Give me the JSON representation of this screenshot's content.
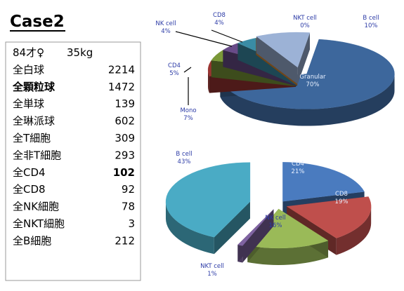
{
  "title": "Case2",
  "table": {
    "rows": [
      [
        "84才♀",
        "35kg"
      ],
      [
        "全白球",
        2214
      ],
      [
        "全顆粒球",
        1472
      ],
      [
        "全単球",
        139
      ],
      [
        "全琳派球",
        602
      ],
      [
        "全T細胞",
        309
      ],
      [
        "全非T細胞",
        293
      ],
      [
        "全CD4",
        102
      ],
      [
        "全CD8",
        92
      ],
      [
        "全NK細胞",
        78
      ],
      [
        "全NKT細胞",
        3
      ],
      [
        "全B細胞",
        212
      ]
    ]
  },
  "chart_data": [
    {
      "type": "pie",
      "categories": [
        "Granular",
        "Mono",
        "CD4",
        "NK cell",
        "CD8",
        "NKT cell",
        "B cell"
      ],
      "values": [
        70,
        7,
        5,
        4,
        4,
        0,
        10
      ],
      "value_labels": [
        "70%",
        "7%",
        "5%",
        "4%",
        "4%",
        "0%",
        "10%"
      ],
      "colors": [
        "#3d679c",
        "#9a3431",
        "#7a9838",
        "#684b88",
        "#3a8ca5",
        "#e08a2e",
        "#9cb2d6"
      ]
    },
    {
      "type": "pie",
      "categories": [
        "CD4",
        "CD8",
        "NK cell",
        "NKT cell",
        "B cell"
      ],
      "values": [
        21,
        19,
        16,
        1,
        43
      ],
      "value_labels": [
        "21%",
        "19%",
        "16%",
        "1%",
        "43%"
      ],
      "colors": [
        "#4a7bbf",
        "#bf4f4c",
        "#9aba58",
        "#7f63a1",
        "#4aabc5"
      ]
    }
  ]
}
